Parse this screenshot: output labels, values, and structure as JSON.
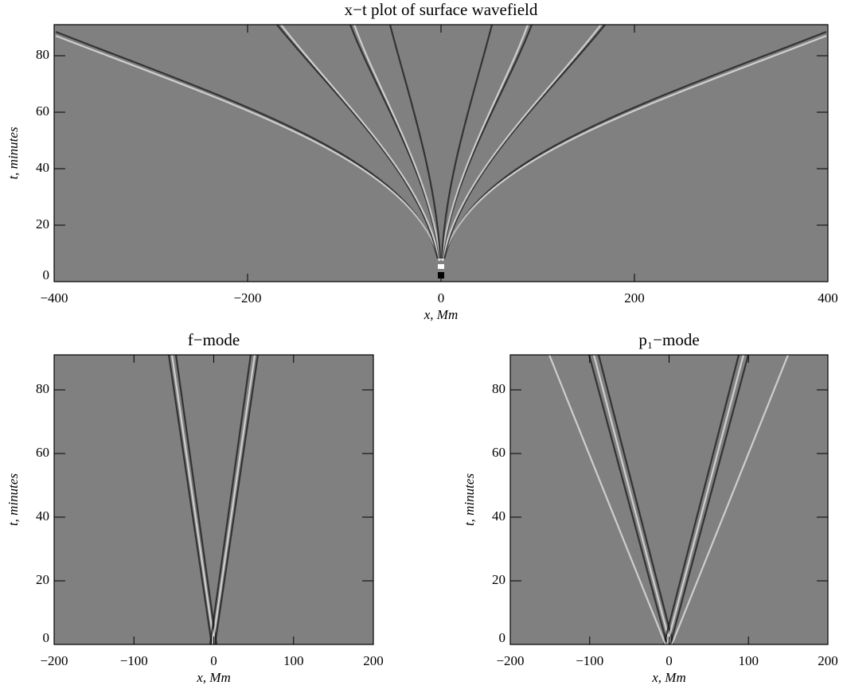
{
  "chart_data": [
    {
      "type": "image",
      "title": "x−t plot of surface wavefield",
      "xlabel": "x, Mm",
      "ylabel": "t, minutes",
      "xlim": [
        -400,
        400
      ],
      "ylim": [
        0,
        91
      ],
      "xticks": [
        {
          "value": -400,
          "label": "−400"
        },
        {
          "value": -200,
          "label": "−200"
        },
        0,
        200,
        400
      ],
      "yticks": [
        0,
        20,
        40,
        60,
        80
      ],
      "color": "#808080"
    },
    {
      "type": "image",
      "title": "f−mode",
      "xlabel": "x, Mm",
      "ylabel": "t, minutes",
      "xlim": [
        -200,
        200
      ],
      "ylim": [
        0,
        91
      ],
      "xticks": [
        {
          "value": -200,
          "label": "−200"
        },
        {
          "value": -100,
          "label": "−100"
        },
        0,
        100,
        200
      ],
      "yticks": [
        0,
        20,
        40,
        60,
        80
      ],
      "color": "#808080"
    },
    {
      "type": "image",
      "title": "p₁−mode",
      "xlabel": "x, Mm",
      "ylabel": "t, minutes",
      "xlim": [
        -200,
        200
      ],
      "ylim": [
        0,
        91
      ],
      "xticks": [
        {
          "value": -200,
          "label": "−200"
        },
        {
          "value": -100,
          "label": "−100"
        },
        0,
        100,
        200
      ],
      "yticks": [
        0,
        20,
        40,
        60,
        80
      ],
      "color": "#808080"
    }
  ]
}
